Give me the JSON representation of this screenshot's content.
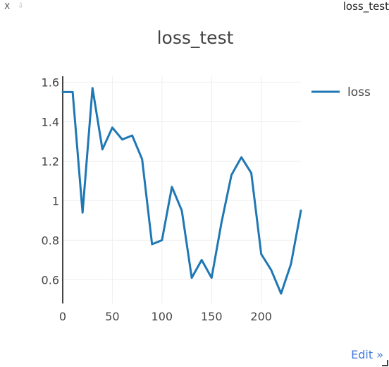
{
  "window": {
    "close_label": "X",
    "drag_icon": "drag-handle-icon",
    "title": "loss_test"
  },
  "footer": {
    "edit_label": "Edit »",
    "resize_icon": "resize-handle-icon"
  },
  "chart_data": {
    "type": "line",
    "title": "loss_test",
    "xlabel": "",
    "ylabel": "",
    "xlim": [
      0,
      240
    ],
    "ylim": [
      0.48,
      1.63
    ],
    "x_ticks": [
      0,
      50,
      100,
      150,
      200
    ],
    "y_ticks": [
      0.6,
      0.8,
      1,
      1.2,
      1.4,
      1.6
    ],
    "grid": true,
    "legend_position": "top-right",
    "series": [
      {
        "name": "loss",
        "color": "#1f77b4",
        "x": [
          0,
          10,
          20,
          30,
          40,
          50,
          60,
          70,
          80,
          90,
          100,
          110,
          120,
          130,
          140,
          150,
          160,
          170,
          180,
          190,
          200,
          210,
          220,
          230,
          240
        ],
        "y": [
          1.55,
          1.55,
          0.94,
          1.57,
          1.26,
          1.37,
          1.31,
          1.33,
          1.21,
          0.78,
          0.8,
          1.07,
          0.95,
          0.61,
          0.7,
          0.61,
          0.89,
          1.13,
          1.22,
          1.14,
          0.73,
          0.65,
          0.53,
          0.68,
          0.95
        ]
      }
    ]
  }
}
